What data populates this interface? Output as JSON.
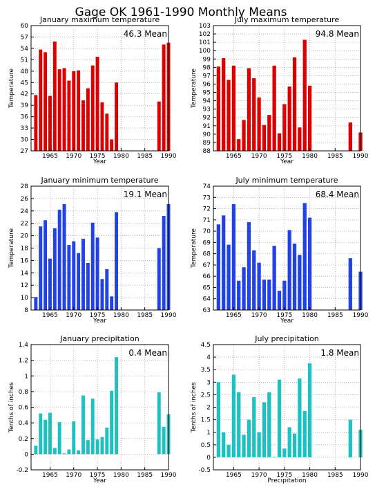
{
  "figure_title": "Gage OK  1961-1990 Monthly Means",
  "chart_data": [
    {
      "type": "bar",
      "title": "January maximum temperature",
      "xlabel": "Year",
      "ylabel": "Temperature",
      "color": "#dd0000",
      "mean_label": "46.3  Mean",
      "xlim": [
        1961,
        1990
      ],
      "ylim": [
        27,
        60
      ],
      "yticks": [
        27,
        30,
        33,
        36,
        39,
        42,
        45,
        48,
        51,
        54,
        57,
        60
      ],
      "xticks": [
        1965,
        1970,
        1975,
        1980,
        1985,
        1990
      ],
      "x": [
        1962,
        1963,
        1964,
        1965,
        1966,
        1967,
        1968,
        1969,
        1970,
        1971,
        1972,
        1973,
        1974,
        1975,
        1976,
        1977,
        1978,
        1979,
        1980,
        1988,
        1989,
        1990
      ],
      "values": [
        41.7,
        53.7,
        53.0,
        41.5,
        55.8,
        48.5,
        48.8,
        45.5,
        48.0,
        48.2,
        40.3,
        43.5,
        49.5,
        51.8,
        39.8,
        36.8,
        30.0,
        45.0,
        null,
        40.0,
        55.0,
        55.5
      ]
    },
    {
      "type": "bar",
      "title": "July maximum temperature",
      "xlabel": "Year",
      "ylabel": "Temperature",
      "color": "#dd0000",
      "mean_label": "94.8  Mean",
      "xlim": [
        1961,
        1990
      ],
      "ylim": [
        88,
        103
      ],
      "yticks": [
        88,
        89,
        90,
        91,
        92,
        93,
        94,
        95,
        96,
        97,
        98,
        99,
        100,
        101,
        102,
        103
      ],
      "xticks": [
        1965,
        1970,
        1975,
        1980,
        1985,
        1990
      ],
      "x": [
        1962,
        1963,
        1964,
        1965,
        1966,
        1967,
        1968,
        1969,
        1970,
        1971,
        1972,
        1973,
        1974,
        1975,
        1976,
        1977,
        1978,
        1979,
        1980,
        1988,
        1990
      ],
      "values": [
        98.1,
        99.1,
        96.5,
        98.2,
        89.4,
        91.7,
        97.9,
        96.7,
        94.4,
        91.1,
        92.3,
        98.2,
        90.1,
        93.6,
        95.7,
        99.2,
        90.8,
        101.3,
        95.8,
        91.4,
        90.2
      ]
    },
    {
      "type": "bar",
      "title": "January minimum temperature",
      "xlabel": "Year",
      "ylabel": "Temperature",
      "color": "#2242e6",
      "mean_label": "19.1  Mean",
      "xlim": [
        1961,
        1990
      ],
      "ylim": [
        8,
        28
      ],
      "yticks": [
        8,
        10,
        12,
        14,
        16,
        18,
        20,
        22,
        24,
        26,
        28
      ],
      "xticks": [
        1965,
        1970,
        1975,
        1980,
        1985,
        1990
      ],
      "x": [
        1962,
        1963,
        1964,
        1965,
        1966,
        1967,
        1968,
        1969,
        1970,
        1971,
        1972,
        1973,
        1974,
        1975,
        1976,
        1977,
        1978,
        1979,
        1980,
        1988,
        1989,
        1990
      ],
      "values": [
        10.1,
        21.5,
        22.5,
        16.3,
        21.2,
        24.2,
        25.1,
        18.5,
        19.1,
        17.2,
        19.5,
        15.6,
        22.1,
        19.7,
        13.0,
        14.6,
        10.2,
        23.8,
        null,
        18.0,
        23.2,
        25.1
      ]
    },
    {
      "type": "bar",
      "title": "July minimum temperature",
      "xlabel": "Year",
      "ylabel": "Temperature",
      "color": "#2242e6",
      "mean_label": "68.4  Mean",
      "xlim": [
        1961,
        1990
      ],
      "ylim": [
        63,
        74
      ],
      "yticks": [
        63,
        64,
        65,
        66,
        67,
        68,
        69,
        70,
        71,
        72,
        73,
        74
      ],
      "xticks": [
        1965,
        1970,
        1975,
        1980,
        1985,
        1990
      ],
      "x": [
        1962,
        1963,
        1964,
        1965,
        1966,
        1967,
        1968,
        1969,
        1970,
        1971,
        1972,
        1973,
        1974,
        1975,
        1976,
        1977,
        1978,
        1979,
        1980,
        1988,
        1990
      ],
      "values": [
        70.6,
        71.4,
        68.8,
        72.4,
        65.6,
        66.8,
        70.8,
        68.3,
        67.2,
        65.7,
        65.7,
        68.7,
        64.7,
        65.6,
        70.1,
        68.9,
        67.9,
        72.5,
        71.2,
        67.6,
        66.4
      ]
    },
    {
      "type": "bar",
      "title": "January precipitation",
      "xlabel": "Year",
      "ylabel": "Tenths of inches",
      "color": "#1ec1c1",
      "mean_label": "0.4  Mean",
      "xlim": [
        1961,
        1990
      ],
      "ylim": [
        -0.2,
        1.4
      ],
      "yticks": [
        -0.2,
        0,
        0.2,
        0.4,
        0.6,
        0.8,
        1,
        1.2,
        1.4
      ],
      "xticks": [
        1965,
        1970,
        1975,
        1980,
        1985,
        1990
      ],
      "x": [
        1962,
        1963,
        1964,
        1965,
        1966,
        1967,
        1968,
        1969,
        1970,
        1971,
        1972,
        1973,
        1974,
        1975,
        1976,
        1977,
        1978,
        1979,
        1980,
        1988,
        1989,
        1990
      ],
      "values": [
        0.11,
        0.52,
        0.44,
        0.53,
        0.08,
        0.41,
        0.01,
        0.06,
        0.42,
        0.05,
        0.75,
        0.18,
        0.71,
        0.19,
        0.22,
        0.34,
        0.81,
        1.24,
        null,
        0.79,
        0.35,
        0.51
      ]
    },
    {
      "type": "bar",
      "title": "July precipitation",
      "xlabel": "Precipitation",
      "ylabel": "Tenths of inches",
      "color": "#1ec1c1",
      "mean_label": "1.8  Mean",
      "xlim": [
        1961,
        1990
      ],
      "ylim": [
        -0.5,
        4.5
      ],
      "yticks": [
        -0.5,
        0,
        0.5,
        1,
        1.5,
        2,
        2.5,
        3,
        3.5,
        4,
        4.5
      ],
      "xticks": [
        1965,
        1970,
        1975,
        1980,
        1985,
        1990
      ],
      "x": [
        1962,
        1963,
        1964,
        1965,
        1966,
        1967,
        1968,
        1969,
        1970,
        1971,
        1972,
        1973,
        1974,
        1975,
        1976,
        1977,
        1978,
        1979,
        1980,
        1988,
        1990
      ],
      "values": [
        3.0,
        1.0,
        0.5,
        3.3,
        2.6,
        0.9,
        1.5,
        2.4,
        1.0,
        2.2,
        2.6,
        0.02,
        3.1,
        0.35,
        1.2,
        0.95,
        3.15,
        1.85,
        3.75,
        1.5,
        1.1
      ]
    }
  ]
}
